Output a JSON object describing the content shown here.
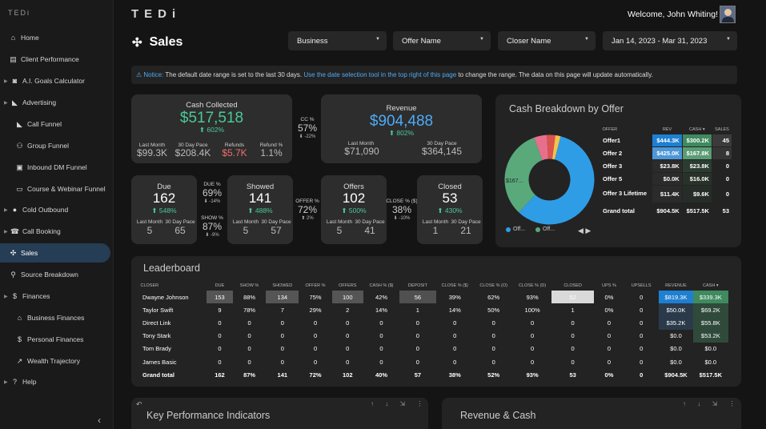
{
  "app": {
    "logo": "TEDi",
    "brand": "TEDi",
    "welcome": "Welcome, John Whiting!"
  },
  "sidebar": {
    "items": [
      {
        "label": "Home",
        "icon": "home-icon",
        "glyph": "⌂",
        "indent": 0,
        "arrow": false,
        "active": false
      },
      {
        "label": "Client Performance",
        "icon": "chart-icon",
        "glyph": "▤",
        "indent": 0,
        "arrow": false,
        "active": false
      },
      {
        "label": "A.I. Goals Calculator",
        "icon": "robot-icon",
        "glyph": "◙",
        "indent": 0,
        "arrow": true,
        "active": false
      },
      {
        "label": "Advertising",
        "icon": "megaphone-icon",
        "glyph": "◣",
        "indent": 0,
        "arrow": true,
        "active": false
      },
      {
        "label": "Call Funnel",
        "icon": "funnel-icon",
        "glyph": "◣",
        "indent": 1,
        "arrow": false,
        "active": false
      },
      {
        "label": "Group Funnel",
        "icon": "group-icon",
        "glyph": "⚇",
        "indent": 1,
        "arrow": false,
        "active": false
      },
      {
        "label": "Inbound DM Funnel",
        "icon": "inbox-icon",
        "glyph": "▣",
        "indent": 1,
        "arrow": false,
        "active": false
      },
      {
        "label": "Course & Webinar Funnel",
        "icon": "laptop-icon",
        "glyph": "▭",
        "indent": 1,
        "arrow": false,
        "active": false
      },
      {
        "label": "Cold Outbound",
        "icon": "chat-icon",
        "glyph": "●",
        "indent": 0,
        "arrow": true,
        "active": false
      },
      {
        "label": "Call Booking",
        "icon": "phone-icon",
        "glyph": "☎",
        "indent": 0,
        "arrow": true,
        "active": false
      },
      {
        "label": "Sales",
        "icon": "pinwheel-icon",
        "glyph": "✣",
        "indent": 0,
        "arrow": false,
        "active": true
      },
      {
        "label": "Source Breakdown",
        "icon": "magnifier-icon",
        "glyph": "⚲",
        "indent": 0,
        "arrow": false,
        "active": false
      },
      {
        "label": "Finances",
        "icon": "money-bag-icon",
        "glyph": "$",
        "indent": 0,
        "arrow": true,
        "active": false
      },
      {
        "label": "Business Finances",
        "icon": "bank-icon",
        "glyph": "⌂",
        "indent": 1,
        "arrow": false,
        "active": false
      },
      {
        "label": "Personal Finances",
        "icon": "money-bag-icon",
        "glyph": "$",
        "indent": 1,
        "arrow": false,
        "active": false
      },
      {
        "label": "Wealth Trajectory",
        "icon": "trend-chart-icon",
        "glyph": "↗",
        "indent": 1,
        "arrow": false,
        "active": false
      },
      {
        "label": "Help",
        "icon": "question-icon",
        "glyph": "?",
        "indent": 0,
        "arrow": true,
        "active": false
      }
    ],
    "collapse_glyph": "‹"
  },
  "page": {
    "title": "Sales",
    "title_icon": "✣"
  },
  "filters": {
    "business": "Business",
    "offer": "Offer Name",
    "closer": "Closer Name",
    "date": "Jan 14, 2023 - Mar 31, 2023"
  },
  "notice": {
    "prefix": "⚠ Notice:",
    "text1": " The default date range is set to the last 30 days. ",
    "link": "Use the date selection tool in the top right of this page",
    "text2": " to change the range. The data on this page will update automatically."
  },
  "kpi": {
    "cash": {
      "label": "Cash Collected",
      "value": "$517,518",
      "pct": "⬆ 602%",
      "last_month_label": "Last Month",
      "last_month": "$99.3K",
      "pace_label": "30 Day Pace",
      "pace": "$208.4K",
      "refunds_label": "Refunds",
      "refunds": "$5.7K",
      "refund_pct_label": "Refund %",
      "refund_pct": "1.1%"
    },
    "cc": {
      "label": "CC %",
      "value": "57%",
      "pct": "⬇ -22%"
    },
    "revenue": {
      "label": "Revenue",
      "value": "$904,488",
      "pct": "⬆ 802%",
      "last_month_label": "Last Month",
      "last_month": "$71,090",
      "pace_label": "30 Day Pace",
      "pace": "$364,145"
    },
    "due": {
      "label": "Due",
      "value": "162",
      "pct": "⬆ 548%",
      "last_month_label": "Last Month",
      "last_month": "5",
      "pace_label": "30 Day Pace",
      "pace": "65"
    },
    "due_pct": {
      "label": "DUE %",
      "value": "69%",
      "pct": "⬇ -14%"
    },
    "show_pct": {
      "label": "SHOW %",
      "value": "87%",
      "pct": "⬇ -9%"
    },
    "showed": {
      "label": "Showed",
      "value": "141",
      "pct": "⬆ 488%",
      "last_month_label": "Last Month",
      "last_month": "5",
      "pace_label": "30 Day Pace",
      "pace": "57"
    },
    "offer_pct": {
      "label": "OFFER %",
      "value": "72%",
      "pct": "⬆ 2%"
    },
    "offers": {
      "label": "Offers",
      "value": "102",
      "pct": "⬆ 500%",
      "last_month_label": "Last Month",
      "last_month": "5",
      "pace_label": "30 Day Pace",
      "pace": "41"
    },
    "close_pct": {
      "label": "CLOSE % ($)",
      "value": "38%",
      "pct": "⬇ -10%"
    },
    "closed": {
      "label": "Closed",
      "value": "53",
      "pct": "⬆ 430%",
      "last_month_label": "Last Month",
      "last_month": "1",
      "pace_label": "30 Day Pace",
      "pace": "21"
    }
  },
  "breakdown": {
    "title": "Cash Breakdown by Offer",
    "headers": [
      "OFFER",
      "REV",
      "CASH ▾",
      "SALES"
    ],
    "rows": [
      [
        "Offer1",
        "$444.3K",
        "$300.2K",
        "45"
      ],
      [
        "Offer 2",
        "$425.0K",
        "$167.8K",
        "8"
      ],
      [
        "Offer 3",
        "$23.8K",
        "$23.8K",
        "0"
      ],
      [
        "Offer 5",
        "$0.0K",
        "$16.0K",
        "0"
      ],
      [
        "Offer 3 Lifetime",
        "$11.4K",
        "$9.6K",
        "0"
      ]
    ],
    "total": [
      "Grand total",
      "$904.5K",
      "$517.5K",
      "53"
    ],
    "legend": [
      "Off...",
      "Off..."
    ],
    "pager": "◀ ▶",
    "slice_label": "$167...",
    "colors": {
      "blue": "#2e9de6",
      "green": "#5aa97b",
      "pink": "#e6708c",
      "red": "#d9534f",
      "yellow": "#f3c34e"
    }
  },
  "chart_data": {
    "type": "pie",
    "title": "Cash Breakdown by Offer",
    "categories": [
      "Offer1",
      "Offer 2",
      "Offer 3",
      "Offer 5",
      "Offer 3 Lifetime"
    ],
    "values": [
      300.2,
      167.8,
      23.8,
      16.0,
      9.6
    ],
    "unit": "$K"
  },
  "leaderboard": {
    "title": "Leaderboard",
    "headers": [
      "CLOSER",
      "DUE",
      "SHOW %",
      "SHOWED",
      "OFFER %",
      "OFFERS",
      "CASH % ($)",
      "DEPOSIT",
      "CLOSE % ($)",
      "CLOSE % (O)",
      "CLOSE % (D)",
      "CLOSED",
      "UPS %",
      "UPSELLS",
      "REVENUE",
      "CASH ▾"
    ],
    "rows": [
      [
        "Dwayne Johnson",
        "153",
        "88%",
        "134",
        "75%",
        "100",
        "42%",
        "56",
        "39%",
        "62%",
        "93%",
        "52",
        "0%",
        "0",
        "$819.3K",
        "$339.3K"
      ],
      [
        "Taylor Swift",
        "9",
        "78%",
        "7",
        "29%",
        "2",
        "14%",
        "1",
        "14%",
        "50%",
        "100%",
        "1",
        "0%",
        "0",
        "$50.0K",
        "$69.2K"
      ],
      [
        "Direct Link",
        "0",
        "0",
        "0",
        "0",
        "0",
        "0",
        "0",
        "0",
        "0",
        "0",
        "0",
        "0",
        "0",
        "$35.2K",
        "$55.8K"
      ],
      [
        "Tony Stark",
        "0",
        "0",
        "0",
        "0",
        "0",
        "0",
        "0",
        "0",
        "0",
        "0",
        "0",
        "0",
        "0",
        "$0.0",
        "$53.2K"
      ],
      [
        "Tom Brady",
        "0",
        "0",
        "0",
        "0",
        "0",
        "0",
        "0",
        "0",
        "0",
        "0",
        "0",
        "0",
        "0",
        "$0.0",
        "$0.0"
      ],
      [
        "James Basic",
        "0",
        "0",
        "0",
        "0",
        "0",
        "0",
        "0",
        "0",
        "0",
        "0",
        "0",
        "0",
        "0",
        "$0.0",
        "$0.0"
      ]
    ],
    "total": [
      "Grand total",
      "162",
      "87%",
      "141",
      "72%",
      "102",
      "40%",
      "57",
      "38%",
      "52%",
      "93%",
      "53",
      "0%",
      "0",
      "$904.5K",
      "$517.5K"
    ]
  },
  "bottom": {
    "kpi_title": "Key Performance Indicators",
    "rev_title": "Revenue & Cash",
    "icons": "↑ ↓ ⇲ ⋮",
    "reset": "↶"
  }
}
